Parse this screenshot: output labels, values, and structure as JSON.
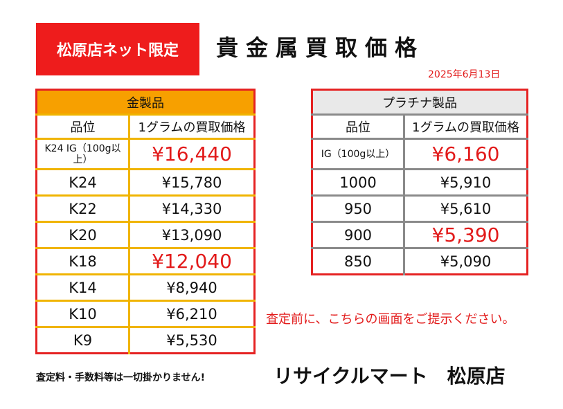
{
  "badge": "松原店ネット限定",
  "title": "貴金属買取価格",
  "date": "2025年6月13日",
  "gold": {
    "header": "金製品",
    "col_grade": "品位",
    "col_price": "1グラムの買取価格",
    "rows": [
      {
        "grade": "K24 IG（100g以上）",
        "price": "¥16,440",
        "highlight": true
      },
      {
        "grade": "K24",
        "price": "¥15,780",
        "highlight": false
      },
      {
        "grade": "K22",
        "price": "¥14,330",
        "highlight": false
      },
      {
        "grade": "K20",
        "price": "¥13,090",
        "highlight": false
      },
      {
        "grade": "K18",
        "price": "¥12,040",
        "highlight": true
      },
      {
        "grade": "K14",
        "price": "¥8,940",
        "highlight": false
      },
      {
        "grade": "K10",
        "price": "¥6,210",
        "highlight": false
      },
      {
        "grade": "K9",
        "price": "¥5,530",
        "highlight": false
      }
    ]
  },
  "platinum": {
    "header": "プラチナ製品",
    "col_grade": "品位",
    "col_price": "1グラムの買取価格",
    "rows": [
      {
        "grade": "IG（100g以上）",
        "price": "¥6,160",
        "highlight": true
      },
      {
        "grade": "1000",
        "price": "¥5,910",
        "highlight": false
      },
      {
        "grade": "950",
        "price": "¥5,610",
        "highlight": false
      },
      {
        "grade": "900",
        "price": "¥5,390",
        "highlight": true
      },
      {
        "grade": "850",
        "price": "¥5,090",
        "highlight": false
      }
    ]
  },
  "notice": "査定前に、こちらの画面をご提示ください。",
  "footer_note": "査定料・手数料等は一切掛かりません!",
  "store_name": "リサイクルマート　松原店",
  "colors": {
    "accent_red": "#e52222",
    "gold_header": "#f7a000",
    "gold_border": "#f0b400",
    "platinum_border": "#8a8a8a"
  }
}
